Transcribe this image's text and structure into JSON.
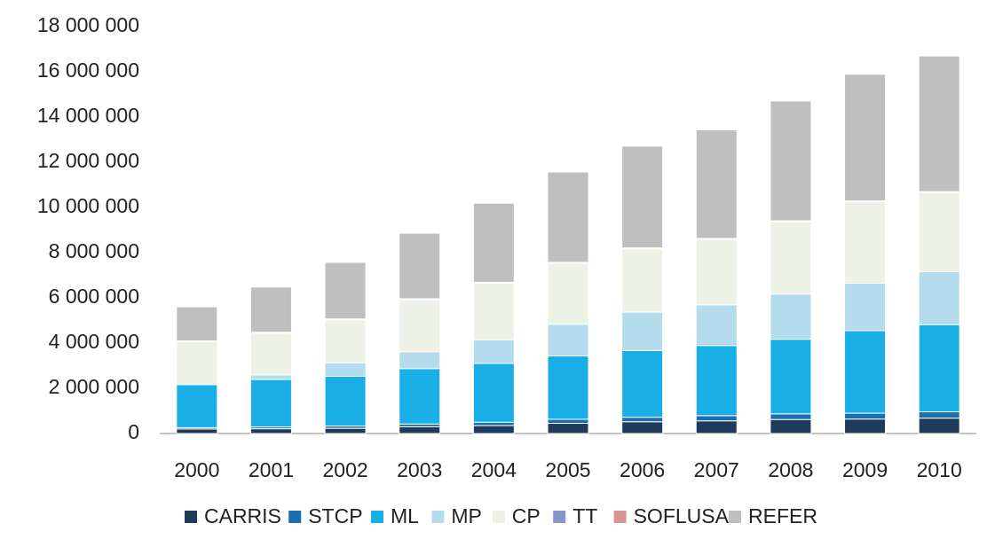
{
  "chart_data": {
    "type": "bar",
    "stacked": true,
    "categories": [
      "2000",
      "2001",
      "2002",
      "2003",
      "2004",
      "2005",
      "2006",
      "2007",
      "2008",
      "2009",
      "2010"
    ],
    "ylim": [
      0,
      18000000
    ],
    "yticks": [
      0,
      2000000,
      4000000,
      6000000,
      8000000,
      10000000,
      12000000,
      14000000,
      16000000,
      18000000
    ],
    "ytick_labels": [
      "0",
      "2 000 000",
      "4 000 000",
      "6 000 000",
      "8 000 000",
      "10 000 000",
      "12 000 000",
      "14 000 000",
      "16 000 000",
      "18 000 000"
    ],
    "grid": false,
    "legend_position": "bottom",
    "series": [
      {
        "name": "CARRIS",
        "color": "#1f3a5a",
        "values": [
          200000,
          210000,
          230000,
          300000,
          350000,
          450000,
          520000,
          560000,
          620000,
          640000,
          680000
        ]
      },
      {
        "name": "STCP",
        "color": "#1a6fb3",
        "values": [
          60000,
          80000,
          100000,
          120000,
          150000,
          180000,
          200000,
          230000,
          250000,
          260000,
          280000
        ]
      },
      {
        "name": "ML",
        "color": "#19aee6",
        "values": [
          1900000,
          2100000,
          2200000,
          2450000,
          2600000,
          2800000,
          2950000,
          3100000,
          3300000,
          3650000,
          3850000
        ]
      },
      {
        "name": "MP",
        "color": "#b4dcec",
        "values": [
          0,
          200000,
          600000,
          750000,
          1050000,
          1400000,
          1700000,
          1800000,
          2000000,
          2100000,
          2350000
        ]
      },
      {
        "name": "CP",
        "color": "#eef2e6",
        "values": [
          1900000,
          1850000,
          1900000,
          2300000,
          2500000,
          2700000,
          2800000,
          2900000,
          3200000,
          3600000,
          3500000
        ]
      },
      {
        "name": "TT",
        "color": "#8a94c8",
        "values": [
          30000,
          30000,
          30000,
          30000,
          30000,
          30000,
          30000,
          30000,
          30000,
          30000,
          30000
        ]
      },
      {
        "name": "SOFLUSA",
        "color": "#d99595",
        "values": [
          10000,
          10000,
          10000,
          10000,
          10000,
          10000,
          10000,
          10000,
          10000,
          10000,
          10000
        ]
      },
      {
        "name": "REFER",
        "color": "#bfbfbf",
        "values": [
          1500000,
          2000000,
          2500000,
          2900000,
          3500000,
          4000000,
          4500000,
          4800000,
          5300000,
          5600000,
          6000000
        ]
      }
    ]
  }
}
